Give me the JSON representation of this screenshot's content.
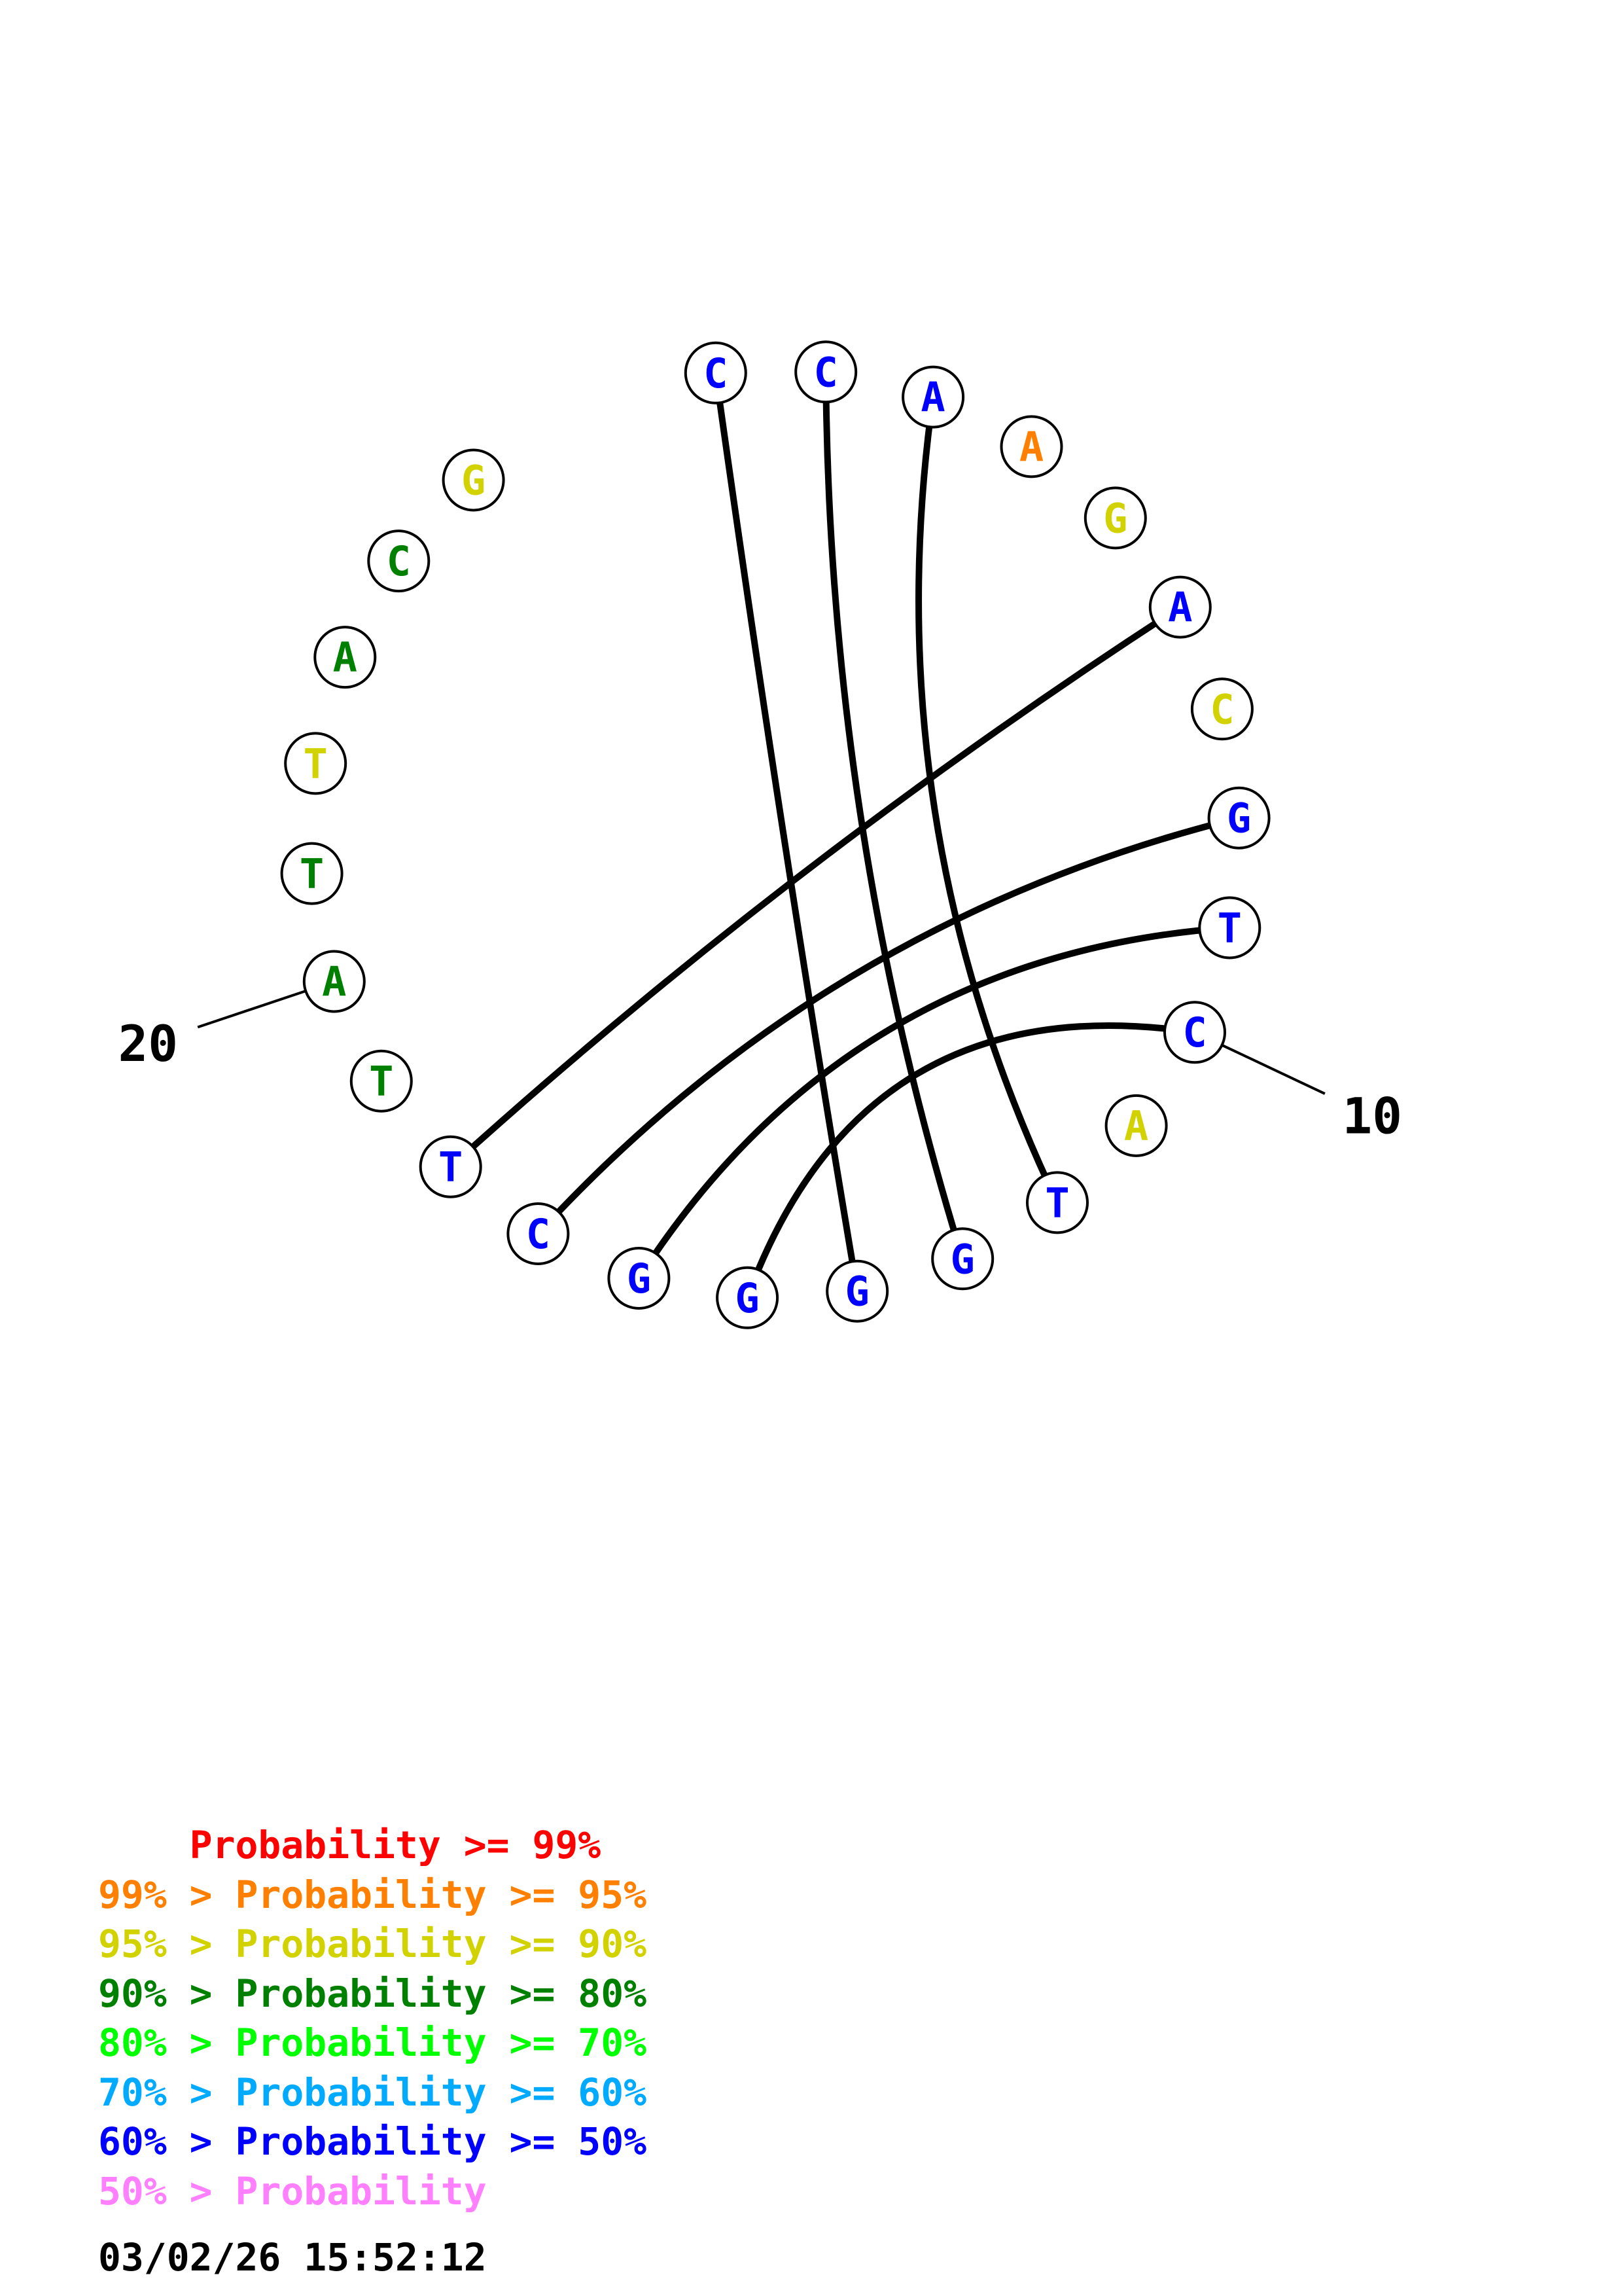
{
  "colors": {
    "p99": "#ff0000",
    "p95": "#ff8000",
    "p90": "#d2d200",
    "p80": "#008000",
    "p70": "#00ff00",
    "p60": "#00aaff",
    "p50": "#0000ff",
    "plt50": "#ff80ff",
    "bond": "#000000"
  },
  "sequence": [
    {
      "index": 1,
      "base": "C",
      "color": "p50"
    },
    {
      "index": 2,
      "base": "C",
      "color": "p50"
    },
    {
      "index": 3,
      "base": "A",
      "color": "p50"
    },
    {
      "index": 4,
      "base": "A",
      "color": "p95"
    },
    {
      "index": 5,
      "base": "G",
      "color": "p90"
    },
    {
      "index": 6,
      "base": "A",
      "color": "p50"
    },
    {
      "index": 7,
      "base": "C",
      "color": "p90"
    },
    {
      "index": 8,
      "base": "G",
      "color": "p50"
    },
    {
      "index": 9,
      "base": "T",
      "color": "p50"
    },
    {
      "index": 10,
      "base": "C",
      "color": "p50"
    },
    {
      "index": 11,
      "base": "A",
      "color": "p90"
    },
    {
      "index": 12,
      "base": "T",
      "color": "p50"
    },
    {
      "index": 13,
      "base": "G",
      "color": "p50"
    },
    {
      "index": 14,
      "base": "G",
      "color": "p50"
    },
    {
      "index": 15,
      "base": "G",
      "color": "p50"
    },
    {
      "index": 16,
      "base": "G",
      "color": "p50"
    },
    {
      "index": 17,
      "base": "C",
      "color": "p50"
    },
    {
      "index": 18,
      "base": "T",
      "color": "p50"
    },
    {
      "index": 19,
      "base": "T",
      "color": "p80"
    },
    {
      "index": 20,
      "base": "A",
      "color": "p80"
    },
    {
      "index": 21,
      "base": "T",
      "color": "p80"
    },
    {
      "index": 22,
      "base": "T",
      "color": "p90"
    },
    {
      "index": 23,
      "base": "A",
      "color": "p80"
    },
    {
      "index": 24,
      "base": "C",
      "color": "p80"
    },
    {
      "index": 25,
      "base": "G",
      "color": "p90"
    }
  ],
  "pairs": [
    [
      1,
      14
    ],
    [
      2,
      13
    ],
    [
      3,
      12
    ],
    [
      6,
      18
    ],
    [
      8,
      17
    ],
    [
      9,
      16
    ],
    [
      10,
      15
    ]
  ],
  "position_labels": [
    {
      "index": 10,
      "text": "10"
    },
    {
      "index": 20,
      "text": "20"
    }
  ],
  "legend": [
    {
      "text": "    Probability >= 99%",
      "color": "p99"
    },
    {
      "text": "99% > Probability >= 95%",
      "color": "p95"
    },
    {
      "text": "95% > Probability >= 90%",
      "color": "p90"
    },
    {
      "text": "90% > Probability >= 80%",
      "color": "p80"
    },
    {
      "text": "80% > Probability >= 70%",
      "color": "p70"
    },
    {
      "text": "70% > Probability >= 60%",
      "color": "p60"
    },
    {
      "text": "60% > Probability >= 50%",
      "color": "p50"
    },
    {
      "text": "50% > Probability",
      "color": "plt50"
    }
  ],
  "timestamp": "03/02/26 15:52:12"
}
